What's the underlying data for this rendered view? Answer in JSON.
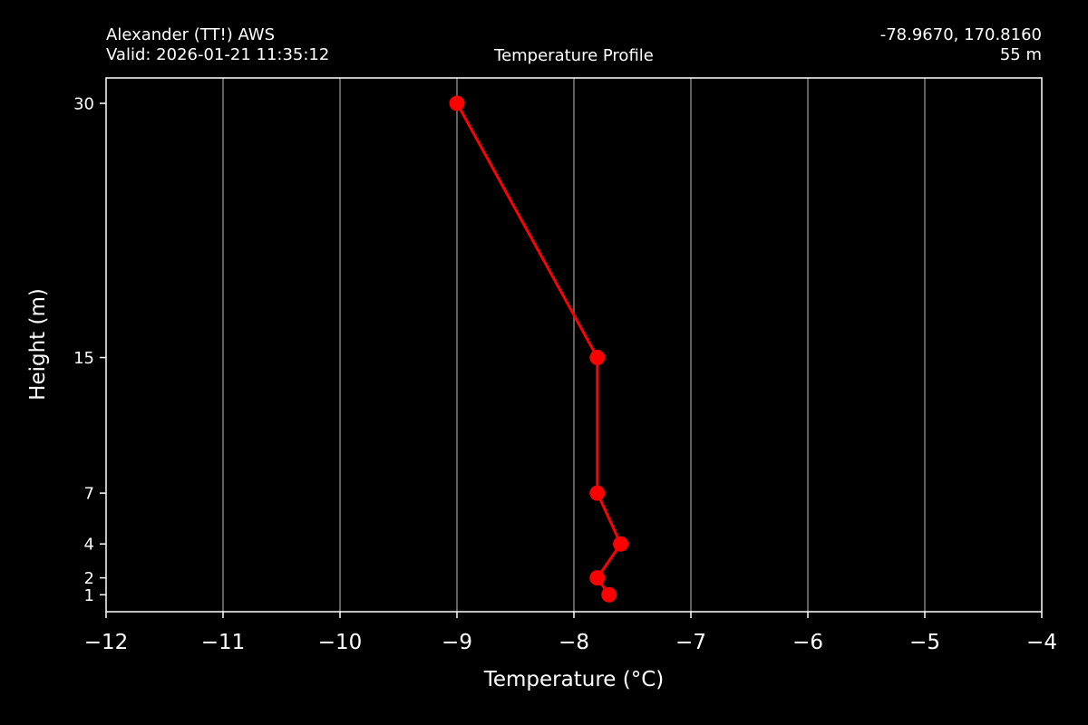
{
  "header": {
    "station": "Alexander (TT!) AWS",
    "valid": "Valid: 2026-01-21 11:35:12",
    "title": "Temperature Profile",
    "coords": "-78.9670, 170.8160",
    "elevation": "55 m"
  },
  "chart_data": {
    "type": "line",
    "title": "Temperature Profile",
    "xlabel": "Temperature ($^\\circ$C)",
    "xlabel_display": "Temperature (°C)",
    "ylabel": "Height (m)",
    "xlim": [
      -12,
      -4
    ],
    "ylim": [
      0,
      31.5
    ],
    "xticks": [
      -12,
      -11,
      -10,
      -9,
      -8,
      -7,
      -6,
      -5,
      -4
    ],
    "xtick_labels": [
      "−12",
      "−11",
      "−10",
      "−9",
      "−8",
      "−7",
      "−6",
      "−5",
      "−4"
    ],
    "yticks": [
      1,
      2,
      4,
      7,
      15,
      30
    ],
    "ytick_labels": [
      "1",
      "2",
      "4",
      "7",
      "15",
      "30"
    ],
    "grid": "vertical",
    "series": [
      {
        "color": "#ff0000",
        "points": [
          {
            "x": -7.7,
            "y": 1
          },
          {
            "x": -7.8,
            "y": 2
          },
          {
            "x": -7.6,
            "y": 4
          },
          {
            "x": -7.8,
            "y": 7
          },
          {
            "x": -7.8,
            "y": 15
          },
          {
            "x": -9.0,
            "y": 30
          }
        ]
      }
    ]
  },
  "colors": {
    "background": "#000000",
    "foreground": "#ffffff",
    "grid": "#808080",
    "series": "#ff0000"
  }
}
